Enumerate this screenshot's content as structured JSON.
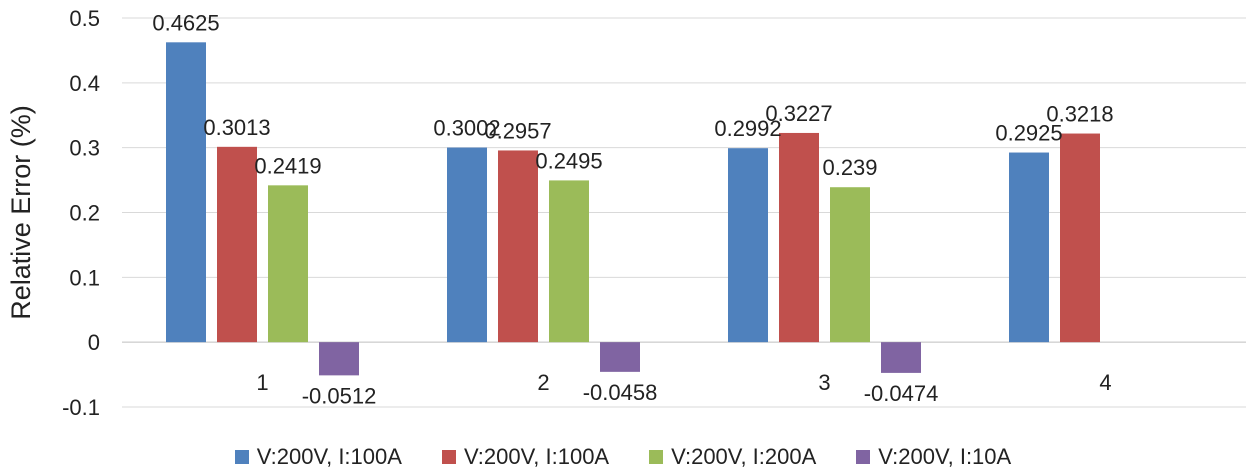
{
  "chart_data": {
    "type": "bar",
    "ylabel": "Relative Error (%)",
    "xlabel": "",
    "ylim": [
      -0.1,
      0.5
    ],
    "yticks": [
      "-0.1",
      "0",
      "0.1",
      "0.2",
      "0.3",
      "0.4",
      "0.5"
    ],
    "categories": [
      "1",
      "2",
      "3",
      "4"
    ],
    "grid": true,
    "legend_position": "bottom",
    "series": [
      {
        "name": "V:200V, I:100A",
        "color": "#4F81BD",
        "values": [
          0.4625,
          0.3002,
          0.2992,
          0.2925
        ],
        "labels": [
          "0.4625",
          "0.3002",
          "0.2992",
          "0.2925"
        ]
      },
      {
        "name": "V:200V, I:100A",
        "color": "#C0504D",
        "values": [
          0.3013,
          0.2957,
          0.3227,
          0.3218
        ],
        "labels": [
          "0.3013",
          "0.2957",
          "0.3227",
          "0.3218"
        ]
      },
      {
        "name": "V:200V, I:200A",
        "color": "#9BBB59",
        "values": [
          0.2419,
          0.2495,
          0.239,
          null
        ],
        "labels": [
          "0.2419",
          "0.2495",
          "0.239",
          ""
        ]
      },
      {
        "name": "V:200V, I:10A",
        "color": "#8064A2",
        "values": [
          -0.0512,
          -0.0458,
          -0.0474,
          null
        ],
        "labels": [
          "-0.0512",
          "-0.0458",
          "-0.0474",
          ""
        ]
      }
    ]
  }
}
